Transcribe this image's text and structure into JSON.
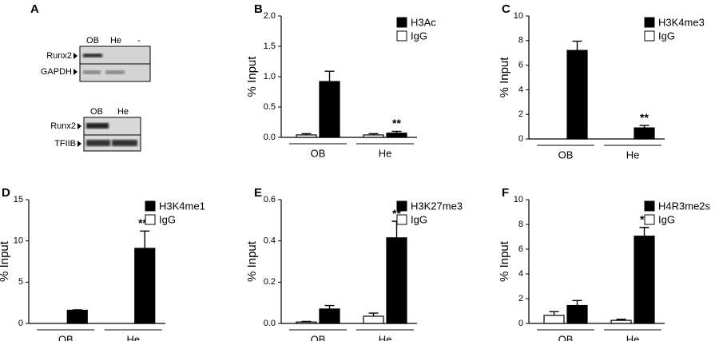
{
  "blots": {
    "panel_label": "A",
    "blots": [
      {
        "lanes": [
          "OB",
          "He",
          "-"
        ],
        "rows": [
          "Runx2",
          "GAPDH"
        ]
      },
      {
        "lanes": [
          "OB",
          "He"
        ],
        "rows": [
          "Runx2",
          "TFIIB"
        ]
      }
    ]
  },
  "chart_data": [
    {
      "type": "bar",
      "panel_label": "B",
      "y_label": "% Input",
      "categories": [
        "OB",
        "He"
      ],
      "series": [
        {
          "name": "H3Ac",
          "color": "#000000",
          "values": [
            0.92,
            0.07
          ],
          "errors": [
            0.17,
            0.03
          ]
        },
        {
          "name": "IgG",
          "color": "#ffffff",
          "values": [
            0.04,
            0.04
          ],
          "errors": [
            0.02,
            0.02
          ]
        }
      ],
      "significance": [
        null,
        "**"
      ],
      "ylim": [
        0,
        2
      ],
      "yticks": [
        {
          "value": 0,
          "label": "0.0"
        },
        0.5,
        {
          "value": 1,
          "label": "1.0"
        },
        1.5,
        {
          "value": 2,
          "label": "2.0"
        }
      ]
    },
    {
      "type": "bar",
      "panel_label": "C",
      "y_label": "% Input",
      "categories": [
        "OB",
        "He"
      ],
      "series": [
        {
          "name": "H3K4me3",
          "color": "#000000",
          "values": [
            7.2,
            0.9
          ],
          "errors": [
            0.75,
            0.2
          ]
        },
        {
          "name": "IgG",
          "color": "#ffffff",
          "values": [
            0,
            0
          ],
          "errors": [
            null,
            null
          ]
        }
      ],
      "significance": [
        null,
        "**"
      ],
      "ylim": [
        0,
        10
      ],
      "yticks": [
        0,
        2,
        4,
        6,
        8,
        10
      ]
    },
    {
      "type": "bar",
      "panel_label": "D",
      "y_label": "% Input",
      "categories": [
        "OB",
        "He"
      ],
      "series": [
        {
          "name": "H3K4me1",
          "color": "#000000",
          "values": [
            1.6,
            9.1
          ],
          "errors": [
            0.05,
            2.1
          ]
        },
        {
          "name": "IgG",
          "color": "#ffffff",
          "values": [
            0,
            0
          ],
          "errors": [
            null,
            null
          ]
        }
      ],
      "significance": [
        null,
        "***"
      ],
      "ylim": [
        0,
        15
      ],
      "yticks": [
        0,
        5,
        10,
        15
      ]
    },
    {
      "type": "bar",
      "panel_label": "E",
      "y_label": "% Input",
      "categories": [
        "OB",
        "He"
      ],
      "series": [
        {
          "name": "H3K27me3",
          "color": "#000000",
          "values": [
            0.07,
            0.415
          ],
          "errors": [
            0.017,
            0.08
          ]
        },
        {
          "name": "IgG",
          "color": "#ffffff",
          "values": [
            0.007,
            0.035
          ],
          "errors": [
            0.003,
            0.015
          ]
        }
      ],
      "significance": [
        null,
        "**"
      ],
      "ylim": [
        0,
        0.6
      ],
      "yticks": [
        {
          "value": 0,
          "label": "0.0"
        },
        0.2,
        0.4,
        0.6
      ]
    },
    {
      "type": "bar",
      "panel_label": "F",
      "y_label": "% Input",
      "categories": [
        "OB",
        "He"
      ],
      "series": [
        {
          "name": "H4R3me2s",
          "color": "#000000",
          "values": [
            1.45,
            7.05
          ],
          "errors": [
            0.4,
            0.7
          ]
        },
        {
          "name": "IgG",
          "color": "#ffffff",
          "values": [
            0.65,
            0.25
          ],
          "errors": [
            0.3,
            0.08
          ]
        }
      ],
      "significance": [
        null,
        "**"
      ],
      "ylim": [
        0,
        10
      ],
      "yticks": [
        0,
        2,
        4,
        6,
        8,
        10
      ]
    }
  ]
}
